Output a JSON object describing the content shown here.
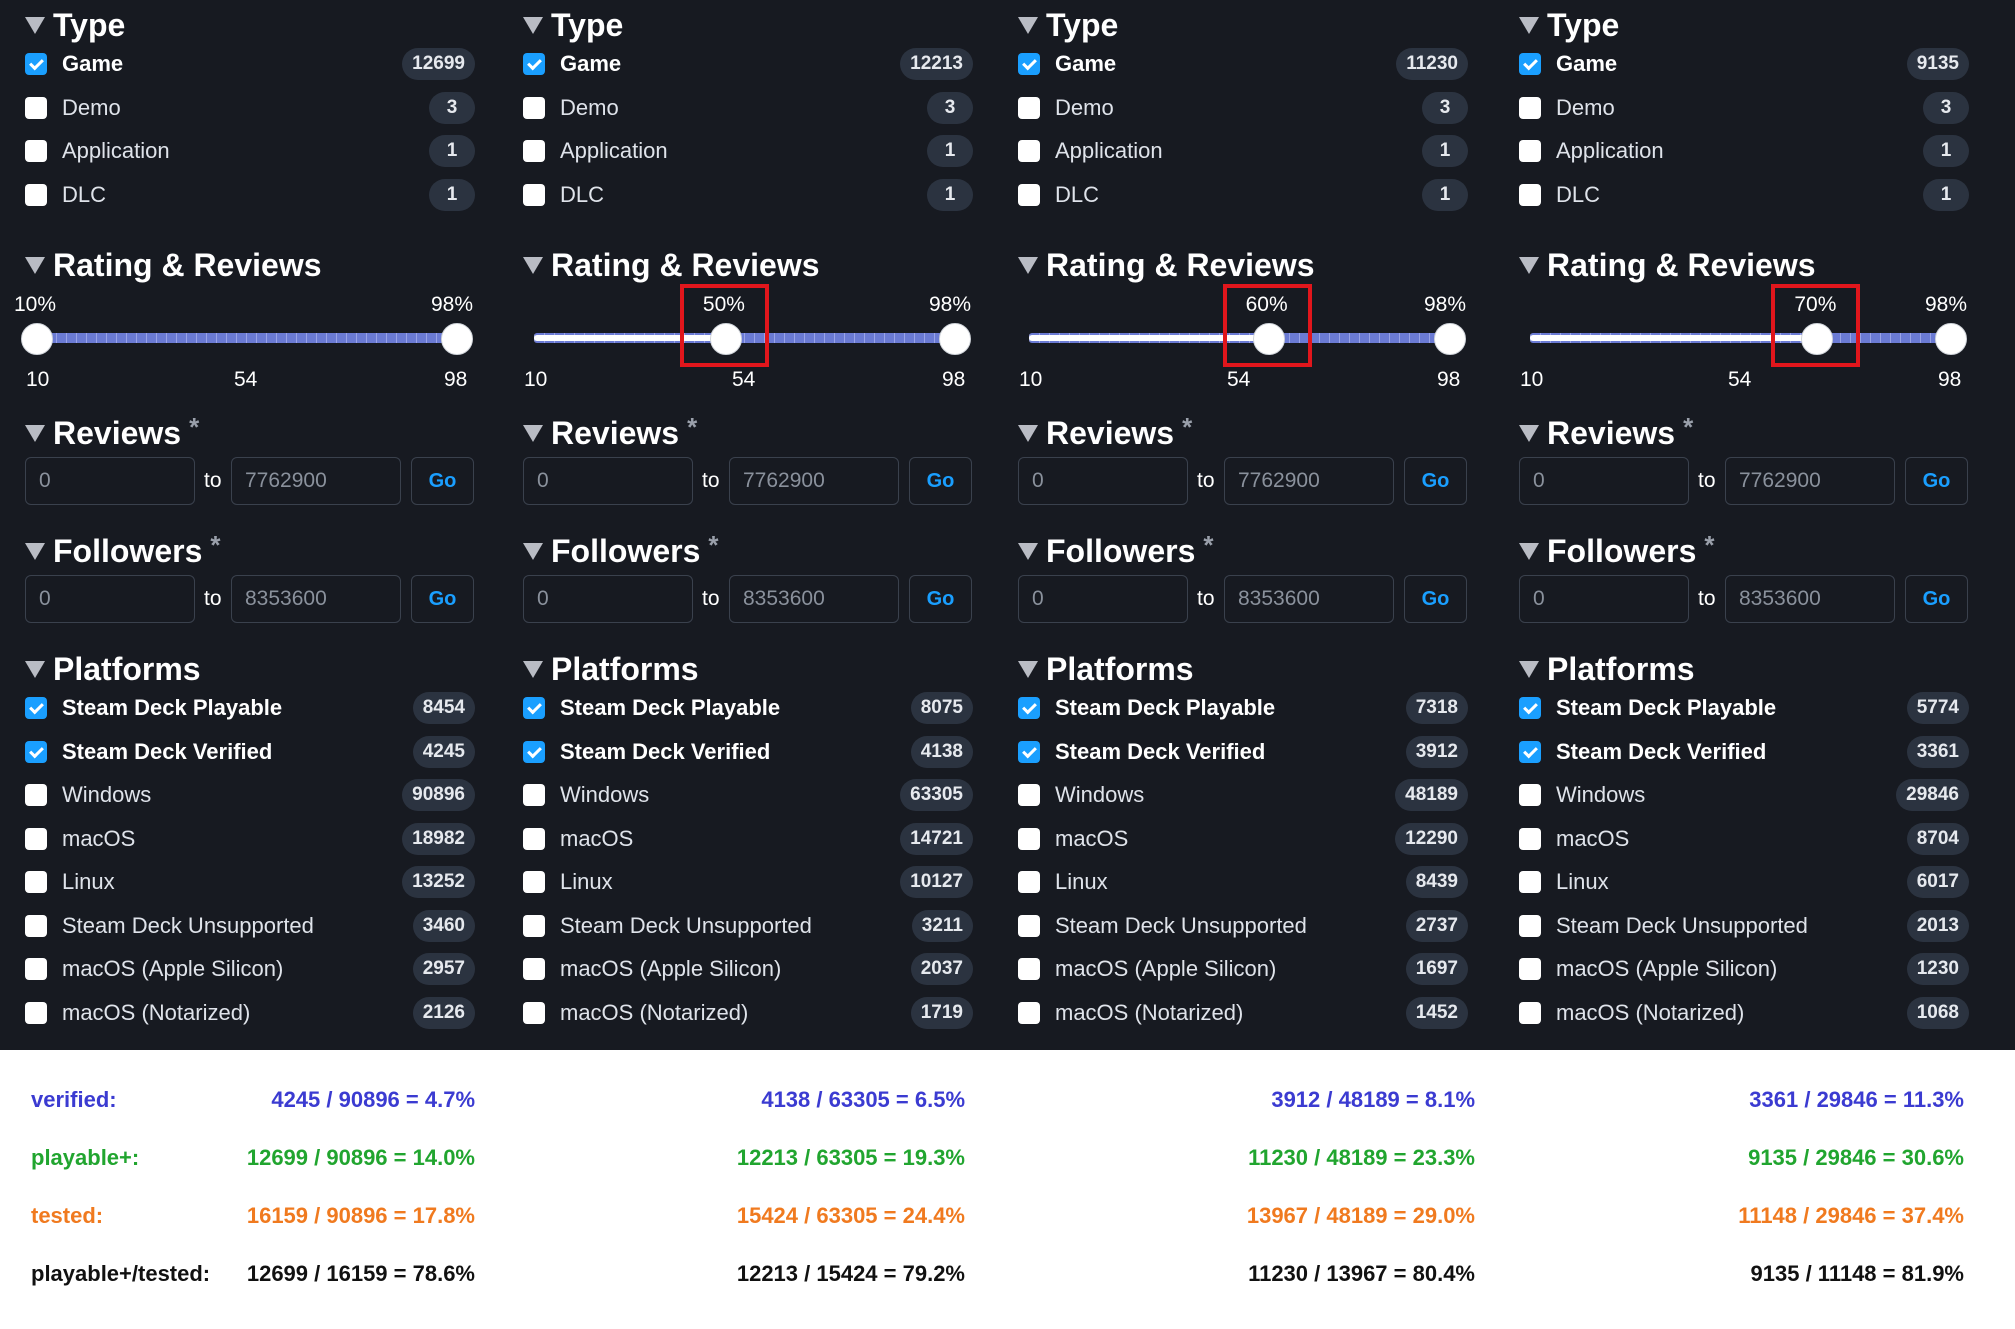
{
  "headings": {
    "type": "Type",
    "rating": "Rating & Reviews",
    "reviews": "Reviews",
    "followers": "Followers",
    "platforms": "Platforms",
    "asterisk": "*"
  },
  "range_labels": {
    "to": "to",
    "go": "Go"
  },
  "slider_ticks": [
    "10",
    "54",
    "98"
  ],
  "panels": [
    {
      "type_items": [
        {
          "label": "Game",
          "count": "12699",
          "checked": true
        },
        {
          "label": "Demo",
          "count": "3",
          "checked": false
        },
        {
          "label": "Application",
          "count": "1",
          "checked": false
        },
        {
          "label": "DLC",
          "count": "1",
          "checked": false
        }
      ],
      "rating": {
        "min_label": "10%",
        "max_label": "98%",
        "min": 10,
        "max": 98,
        "highlighted": false
      },
      "reviews": {
        "from": "0",
        "to": "7762900"
      },
      "followers": {
        "from": "0",
        "to": "8353600"
      },
      "platform_items": [
        {
          "label": "Steam Deck Playable",
          "count": "8454",
          "checked": true
        },
        {
          "label": "Steam Deck Verified",
          "count": "4245",
          "checked": true
        },
        {
          "label": "Windows",
          "count": "90896",
          "checked": false
        },
        {
          "label": "macOS",
          "count": "18982",
          "checked": false
        },
        {
          "label": "Linux",
          "count": "13252",
          "checked": false
        },
        {
          "label": "Steam Deck Unsupported",
          "count": "3460",
          "checked": false
        },
        {
          "label": "macOS (Apple Silicon)",
          "count": "2957",
          "checked": false
        },
        {
          "label": "macOS (Notarized)",
          "count": "2126",
          "checked": false
        }
      ]
    },
    {
      "type_items": [
        {
          "label": "Game",
          "count": "12213",
          "checked": true
        },
        {
          "label": "Demo",
          "count": "3",
          "checked": false
        },
        {
          "label": "Application",
          "count": "1",
          "checked": false
        },
        {
          "label": "DLC",
          "count": "1",
          "checked": false
        }
      ],
      "rating": {
        "min_label": "50%",
        "max_label": "98%",
        "min": 50,
        "max": 98,
        "highlighted": true
      },
      "reviews": {
        "from": "0",
        "to": "7762900"
      },
      "followers": {
        "from": "0",
        "to": "8353600"
      },
      "platform_items": [
        {
          "label": "Steam Deck Playable",
          "count": "8075",
          "checked": true
        },
        {
          "label": "Steam Deck Verified",
          "count": "4138",
          "checked": true
        },
        {
          "label": "Windows",
          "count": "63305",
          "checked": false
        },
        {
          "label": "macOS",
          "count": "14721",
          "checked": false
        },
        {
          "label": "Linux",
          "count": "10127",
          "checked": false
        },
        {
          "label": "Steam Deck Unsupported",
          "count": "3211",
          "checked": false
        },
        {
          "label": "macOS (Apple Silicon)",
          "count": "2037",
          "checked": false
        },
        {
          "label": "macOS (Notarized)",
          "count": "1719",
          "checked": false
        }
      ]
    },
    {
      "type_items": [
        {
          "label": "Game",
          "count": "11230",
          "checked": true
        },
        {
          "label": "Demo",
          "count": "3",
          "checked": false
        },
        {
          "label": "Application",
          "count": "1",
          "checked": false
        },
        {
          "label": "DLC",
          "count": "1",
          "checked": false
        }
      ],
      "rating": {
        "min_label": "60%",
        "max_label": "98%",
        "min": 60,
        "max": 98,
        "highlighted": true
      },
      "reviews": {
        "from": "0",
        "to": "7762900"
      },
      "followers": {
        "from": "0",
        "to": "8353600"
      },
      "platform_items": [
        {
          "label": "Steam Deck Playable",
          "count": "7318",
          "checked": true
        },
        {
          "label": "Steam Deck Verified",
          "count": "3912",
          "checked": true
        },
        {
          "label": "Windows",
          "count": "48189",
          "checked": false
        },
        {
          "label": "macOS",
          "count": "12290",
          "checked": false
        },
        {
          "label": "Linux",
          "count": "8439",
          "checked": false
        },
        {
          "label": "Steam Deck Unsupported",
          "count": "2737",
          "checked": false
        },
        {
          "label": "macOS (Apple Silicon)",
          "count": "1697",
          "checked": false
        },
        {
          "label": "macOS (Notarized)",
          "count": "1452",
          "checked": false
        }
      ]
    },
    {
      "type_items": [
        {
          "label": "Game",
          "count": "9135",
          "checked": true
        },
        {
          "label": "Demo",
          "count": "3",
          "checked": false
        },
        {
          "label": "Application",
          "count": "1",
          "checked": false
        },
        {
          "label": "DLC",
          "count": "1",
          "checked": false
        }
      ],
      "rating": {
        "min_label": "70%",
        "max_label": "98%",
        "min": 70,
        "max": 98,
        "highlighted": true
      },
      "reviews": {
        "from": "0",
        "to": "7762900"
      },
      "followers": {
        "from": "0",
        "to": "8353600"
      },
      "platform_items": [
        {
          "label": "Steam Deck Playable",
          "count": "5774",
          "checked": true
        },
        {
          "label": "Steam Deck Verified",
          "count": "3361",
          "checked": true
        },
        {
          "label": "Windows",
          "count": "29846",
          "checked": false
        },
        {
          "label": "macOS",
          "count": "8704",
          "checked": false
        },
        {
          "label": "Linux",
          "count": "6017",
          "checked": false
        },
        {
          "label": "Steam Deck Unsupported",
          "count": "2013",
          "checked": false
        },
        {
          "label": "macOS (Apple Silicon)",
          "count": "1230",
          "checked": false
        },
        {
          "label": "macOS (Notarized)",
          "count": "1068",
          "checked": false
        }
      ]
    }
  ],
  "summary": {
    "labels": {
      "verified": "verified:",
      "playable": "playable+:",
      "tested": "tested:",
      "ratio": "playable+/tested:"
    },
    "verified": [
      "4245 / 90896 =  4.7%",
      "4138 / 63305 =  6.5%",
      "3912 / 48189 =  8.1%",
      "3361 / 29846 = 11.3%"
    ],
    "playable": [
      "12699 / 90896 = 14.0%",
      "12213 / 63305 = 19.3%",
      "11230 / 48189 = 23.3%",
      "9135 / 29846 = 30.6%"
    ],
    "tested": [
      "16159 / 90896 = 17.8%",
      "15424 / 63305 = 24.4%",
      "13967 / 48189 = 29.0%",
      "11148 / 29846 = 37.4%"
    ],
    "ratio": [
      "12699 / 16159 = 78.6%",
      "12213 / 15424 = 79.2%",
      "11230 / 13967 = 80.4%",
      "9135 / 11148 = 81.9%"
    ]
  },
  "colors": {
    "background": "#171a21",
    "accent": "#1a9fff",
    "highlight_box": "#e1161c",
    "verified": "#3b3bd1",
    "playable": "#21a52f",
    "tested": "#f07a1f",
    "ratio": "#111111"
  }
}
